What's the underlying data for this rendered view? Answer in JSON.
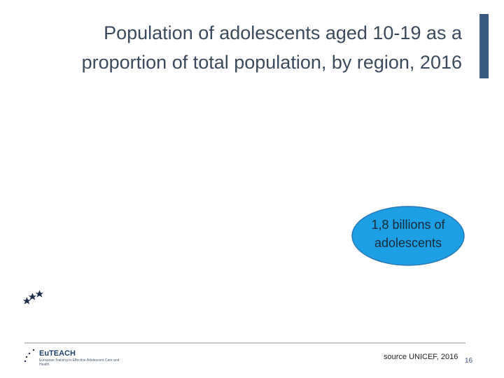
{
  "header": {
    "title_lines": [
      "Population of adolescents aged 10-19 as a",
      "proportion of total population, by region, 2016"
    ]
  },
  "callout": {
    "lines": [
      "1,8 billions of",
      "adolescents"
    ]
  },
  "footer": {
    "logo_name": "EuTEACH",
    "logo_subtitle": "European Training in Effective Adolescent Care and Health",
    "source": "source UNICEF, 2016",
    "page_number": "16"
  }
}
